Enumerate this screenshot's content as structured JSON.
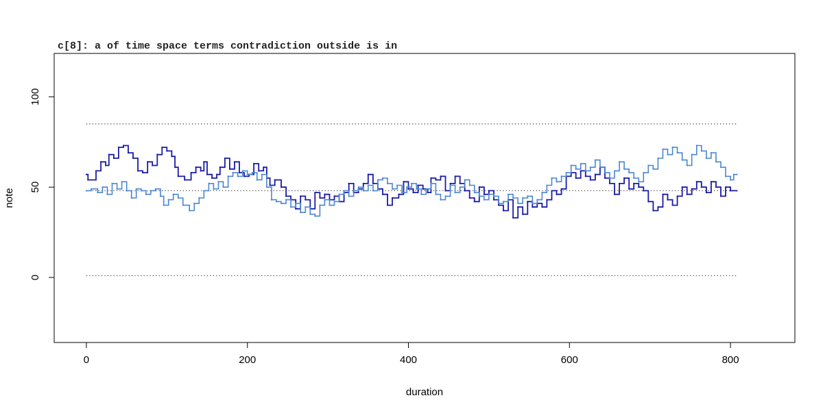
{
  "chart_data": {
    "type": "line",
    "step": true,
    "title": "c[8]: a of time space terms contradiction outside is in",
    "xlabel": "duration",
    "ylabel": "note",
    "xlim": [
      -40,
      880
    ],
    "ylim": [
      -36,
      124
    ],
    "xticks": [
      0,
      200,
      400,
      600,
      800
    ],
    "yticks": [
      0,
      50,
      100
    ],
    "reference_lines": [
      85,
      48,
      1
    ],
    "colors": {
      "dark": "#1a1aa6",
      "light": "#4a86d0",
      "reference": "#333333"
    },
    "series": [
      {
        "color": "#1a1aa6",
        "points": [
          [
            0,
            57
          ],
          [
            2,
            54
          ],
          [
            12,
            59
          ],
          [
            18,
            64
          ],
          [
            24,
            62
          ],
          [
            28,
            68
          ],
          [
            34,
            66
          ],
          [
            40,
            72
          ],
          [
            46,
            73
          ],
          [
            52,
            69
          ],
          [
            58,
            66
          ],
          [
            64,
            59
          ],
          [
            70,
            58
          ],
          [
            76,
            64
          ],
          [
            82,
            62
          ],
          [
            88,
            68
          ],
          [
            94,
            72
          ],
          [
            100,
            70
          ],
          [
            106,
            67
          ],
          [
            110,
            61
          ],
          [
            114,
            56
          ],
          [
            122,
            54
          ],
          [
            130,
            58
          ],
          [
            136,
            61
          ],
          [
            142,
            59
          ],
          [
            146,
            64
          ],
          [
            150,
            57
          ],
          [
            156,
            55
          ],
          [
            162,
            57
          ],
          [
            166,
            61
          ],
          [
            172,
            66
          ],
          [
            178,
            60
          ],
          [
            184,
            64
          ],
          [
            190,
            58
          ],
          [
            196,
            56
          ],
          [
            202,
            57
          ],
          [
            208,
            63
          ],
          [
            214,
            59
          ],
          [
            220,
            61
          ],
          [
            224,
            55
          ],
          [
            228,
            51
          ],
          [
            234,
            54
          ],
          [
            242,
            50
          ],
          [
            248,
            45
          ],
          [
            254,
            43
          ],
          [
            260,
            38
          ],
          [
            266,
            45
          ],
          [
            272,
            43
          ],
          [
            278,
            38
          ],
          [
            284,
            47
          ],
          [
            290,
            44
          ],
          [
            296,
            46
          ],
          [
            302,
            43
          ],
          [
            308,
            45
          ],
          [
            314,
            42
          ],
          [
            320,
            47
          ],
          [
            326,
            52
          ],
          [
            332,
            47
          ],
          [
            338,
            49
          ],
          [
            344,
            52
          ],
          [
            350,
            57
          ],
          [
            356,
            52
          ],
          [
            362,
            49
          ],
          [
            368,
            46
          ],
          [
            374,
            40
          ],
          [
            380,
            44
          ],
          [
            388,
            46
          ],
          [
            394,
            53
          ],
          [
            400,
            49
          ],
          [
            406,
            47
          ],
          [
            412,
            51
          ],
          [
            418,
            49
          ],
          [
            424,
            47
          ],
          [
            428,
            55
          ],
          [
            434,
            54
          ],
          [
            440,
            56
          ],
          [
            446,
            48
          ],
          [
            452,
            52
          ],
          [
            458,
            56
          ],
          [
            464,
            52
          ],
          [
            470,
            48
          ],
          [
            476,
            44
          ],
          [
            482,
            42
          ],
          [
            488,
            50
          ],
          [
            494,
            46
          ],
          [
            500,
            48
          ],
          [
            506,
            43
          ],
          [
            512,
            40
          ],
          [
            518,
            37
          ],
          [
            524,
            43
          ],
          [
            530,
            33
          ],
          [
            536,
            39
          ],
          [
            542,
            35
          ],
          [
            548,
            42
          ],
          [
            554,
            39
          ],
          [
            560,
            41
          ],
          [
            566,
            39
          ],
          [
            572,
            43
          ],
          [
            578,
            48
          ],
          [
            584,
            46
          ],
          [
            590,
            49
          ],
          [
            596,
            56
          ],
          [
            602,
            58
          ],
          [
            608,
            55
          ],
          [
            614,
            59
          ],
          [
            620,
            56
          ],
          [
            626,
            54
          ],
          [
            632,
            57
          ],
          [
            638,
            61
          ],
          [
            644,
            55
          ],
          [
            650,
            52
          ],
          [
            656,
            46
          ],
          [
            662,
            52
          ],
          [
            668,
            55
          ],
          [
            674,
            49
          ],
          [
            680,
            52
          ],
          [
            686,
            50
          ],
          [
            692,
            48
          ],
          [
            698,
            42
          ],
          [
            704,
            37
          ],
          [
            710,
            39
          ],
          [
            716,
            46
          ],
          [
            722,
            43
          ],
          [
            728,
            40
          ],
          [
            734,
            45
          ],
          [
            740,
            50
          ],
          [
            746,
            46
          ],
          [
            752,
            49
          ],
          [
            758,
            53
          ],
          [
            764,
            50
          ],
          [
            770,
            47
          ],
          [
            776,
            53
          ],
          [
            782,
            50
          ],
          [
            788,
            45
          ],
          [
            794,
            50
          ],
          [
            800,
            48
          ],
          [
            808,
            48
          ]
        ]
      },
      {
        "color": "#4a86d0",
        "points": [
          [
            0,
            48
          ],
          [
            6,
            49
          ],
          [
            14,
            47
          ],
          [
            20,
            50
          ],
          [
            26,
            46
          ],
          [
            32,
            52
          ],
          [
            38,
            49
          ],
          [
            44,
            53
          ],
          [
            50,
            48
          ],
          [
            56,
            44
          ],
          [
            62,
            49
          ],
          [
            68,
            48
          ],
          [
            74,
            46
          ],
          [
            80,
            48
          ],
          [
            86,
            49
          ],
          [
            92,
            45
          ],
          [
            96,
            40
          ],
          [
            102,
            43
          ],
          [
            108,
            46
          ],
          [
            114,
            44
          ],
          [
            120,
            40
          ],
          [
            128,
            37
          ],
          [
            134,
            41
          ],
          [
            140,
            44
          ],
          [
            146,
            48
          ],
          [
            152,
            52
          ],
          [
            158,
            49
          ],
          [
            164,
            53
          ],
          [
            170,
            50
          ],
          [
            176,
            56
          ],
          [
            182,
            58
          ],
          [
            188,
            56
          ],
          [
            194,
            59
          ],
          [
            200,
            57
          ],
          [
            206,
            58
          ],
          [
            212,
            54
          ],
          [
            218,
            57
          ],
          [
            224,
            50
          ],
          [
            230,
            43
          ],
          [
            236,
            42
          ],
          [
            242,
            41
          ],
          [
            248,
            43
          ],
          [
            254,
            39
          ],
          [
            260,
            41
          ],
          [
            266,
            36
          ],
          [
            272,
            39
          ],
          [
            278,
            35
          ],
          [
            284,
            34
          ],
          [
            290,
            40
          ],
          [
            296,
            43
          ],
          [
            302,
            40
          ],
          [
            308,
            42
          ],
          [
            314,
            46
          ],
          [
            320,
            48
          ],
          [
            326,
            45
          ],
          [
            332,
            48
          ],
          [
            338,
            50
          ],
          [
            344,
            48
          ],
          [
            350,
            51
          ],
          [
            356,
            48
          ],
          [
            362,
            54
          ],
          [
            368,
            55
          ],
          [
            374,
            52
          ],
          [
            380,
            49
          ],
          [
            386,
            51
          ],
          [
            392,
            47
          ],
          [
            398,
            50
          ],
          [
            404,
            52
          ],
          [
            410,
            49
          ],
          [
            416,
            46
          ],
          [
            422,
            49
          ],
          [
            428,
            52
          ],
          [
            434,
            46
          ],
          [
            440,
            43
          ],
          [
            446,
            45
          ],
          [
            452,
            51
          ],
          [
            458,
            47
          ],
          [
            464,
            50
          ],
          [
            470,
            54
          ],
          [
            476,
            51
          ],
          [
            482,
            47
          ],
          [
            488,
            45
          ],
          [
            494,
            43
          ],
          [
            500,
            46
          ],
          [
            506,
            45
          ],
          [
            512,
            41
          ],
          [
            518,
            42
          ],
          [
            524,
            46
          ],
          [
            530,
            44
          ],
          [
            536,
            41
          ],
          [
            542,
            44
          ],
          [
            548,
            45
          ],
          [
            554,
            41
          ],
          [
            560,
            43
          ],
          [
            566,
            47
          ],
          [
            572,
            51
          ],
          [
            578,
            55
          ],
          [
            584,
            53
          ],
          [
            590,
            56
          ],
          [
            596,
            58
          ],
          [
            602,
            62
          ],
          [
            608,
            60
          ],
          [
            614,
            63
          ],
          [
            620,
            59
          ],
          [
            626,
            61
          ],
          [
            632,
            65
          ],
          [
            638,
            61
          ],
          [
            644,
            58
          ],
          [
            650,
            55
          ],
          [
            656,
            59
          ],
          [
            662,
            64
          ],
          [
            668,
            60
          ],
          [
            674,
            58
          ],
          [
            680,
            55
          ],
          [
            686,
            53
          ],
          [
            692,
            58
          ],
          [
            698,
            62
          ],
          [
            704,
            60
          ],
          [
            710,
            66
          ],
          [
            716,
            71
          ],
          [
            722,
            68
          ],
          [
            728,
            72
          ],
          [
            734,
            69
          ],
          [
            740,
            65
          ],
          [
            746,
            62
          ],
          [
            752,
            68
          ],
          [
            758,
            73
          ],
          [
            764,
            70
          ],
          [
            770,
            66
          ],
          [
            776,
            69
          ],
          [
            782,
            64
          ],
          [
            788,
            61
          ],
          [
            794,
            56
          ],
          [
            800,
            54
          ],
          [
            804,
            57
          ],
          [
            808,
            57
          ]
        ]
      }
    ]
  }
}
